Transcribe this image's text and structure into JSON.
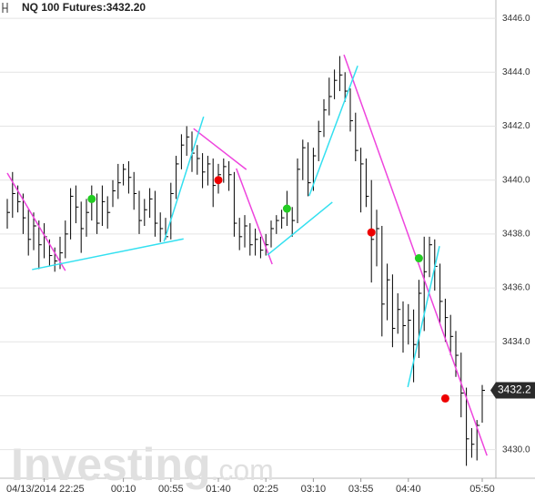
{
  "chart_data": {
    "type": "ohlc",
    "title": "NQ 100 Futures:3432.20",
    "watermark": {
      "brand": "Investing",
      ".com": ".com"
    },
    "categories": [
      null,
      null,
      null,
      null,
      null,
      null,
      null,
      "04/13/2014 22:25",
      null,
      null,
      null,
      null,
      null,
      null,
      null,
      null,
      null,
      null,
      null,
      null,
      null,
      null,
      "00:10",
      null,
      null,
      null,
      null,
      null,
      null,
      null,
      null,
      "00:55",
      null,
      null,
      null,
      null,
      null,
      null,
      null,
      null,
      "01:40",
      null,
      null,
      null,
      null,
      null,
      null,
      null,
      null,
      "02:25",
      null,
      null,
      null,
      null,
      null,
      null,
      null,
      null,
      "03:10",
      null,
      null,
      null,
      null,
      null,
      null,
      null,
      null,
      "03:55",
      null,
      null,
      null,
      null,
      null,
      null,
      null,
      null,
      "04:40",
      null,
      null,
      null,
      null,
      null,
      null,
      null,
      null,
      null,
      null,
      null,
      null,
      null,
      "05:50"
    ],
    "high": [
      3439.3,
      3440.3,
      3439.8,
      3439.5,
      3438.9,
      3438.8,
      3438.5,
      3438.4,
      3437.8,
      3437.5,
      3437.9,
      3438.5,
      3439.7,
      3439.8,
      3439.2,
      3439.3,
      3439.8,
      3439.5,
      3439.8,
      3439.4,
      3440.0,
      3440.6,
      3440.6,
      3440.7,
      3440.3,
      3439.6,
      3439.3,
      3439.7,
      3439.6,
      3438.8,
      3438.6,
      3439.9,
      3440.9,
      3441.7,
      3442.0,
      3441.8,
      3441.3,
      3441.0,
      3440.9,
      3440.8,
      3440.6,
      3440.8,
      3440.7,
      3440.3,
      3438.6,
      3438.7,
      3438.4,
      3438.2,
      3437.9,
      3438.0,
      3438.5,
      3438.7,
      3438.9,
      3439.6,
      3439.0,
      3440.8,
      3441.5,
      3441.4,
      3441.2,
      3442.2,
      3443.0,
      3443.8,
      3444.1,
      3444.6,
      3444.0,
      3443.4,
      3442.5,
      3441.2,
      3440.8,
      3440.0,
      3438.9,
      3438.3,
      3436.9,
      3436.5,
      3435.8,
      3435.5,
      3435.4,
      3435.2,
      3436.3,
      3437.9,
      3437.9,
      3437.8,
      3436.9,
      3435.6,
      3435.0,
      3434.4,
      3433.6,
      3432.3,
      3430.8,
      3431.1,
      3432.4
    ],
    "low": [
      3438.2,
      3438.6,
      3438.8,
      3438.0,
      3437.2,
      3437.4,
      3436.7,
      3437.1,
      3436.8,
      3436.6,
      3436.7,
      3437.1,
      3437.8,
      3438.4,
      3437.3,
      3437.9,
      3438.5,
      3438.0,
      3438.3,
      3438.2,
      3439.0,
      3439.3,
      3439.8,
      3439.5,
      3438.9,
      3438.0,
      3438.3,
      3438.6,
      3437.9,
      3437.7,
      3437.8,
      3437.8,
      3439.3,
      3440.4,
      3440.9,
      3440.3,
      3440.2,
      3439.7,
      3439.8,
      3439.0,
      3439.5,
      3439.9,
      3439.6,
      3437.9,
      3437.4,
      3437.5,
      3437.2,
      3437.2,
      3437.1,
      3437.2,
      3437.5,
      3438.0,
      3438.2,
      3438.3,
      3437.9,
      3438.4,
      3440.0,
      3439.4,
      3439.6,
      3440.7,
      3441.6,
      3442.4,
      3443.0,
      3443.3,
      3442.9,
      3441.8,
      3440.7,
      3438.8,
      3439.0,
      3436.2,
      3436.8,
      3434.2,
      3434.8,
      3433.8,
      3434.3,
      3433.6,
      3433.9,
      3432.5,
      3433.4,
      3434.4,
      3436.4,
      3435.9,
      3434.7,
      3434.0,
      3433.5,
      3432.7,
      3431.2,
      3429.4,
      3429.7,
      3429.6,
      3431.0
    ],
    "close": [
      3438.8,
      3439.5,
      3439.2,
      3438.6,
      3437.8,
      3438.3,
      3437.6,
      3437.9,
      3437.2,
      3437.0,
      3437.3,
      3438.0,
      3439.4,
      3439.0,
      3438.2,
      3438.8,
      3439.3,
      3438.4,
      3439.2,
      3438.8,
      3439.6,
      3439.9,
      3440.4,
      3440.1,
      3439.5,
      3438.5,
      3438.9,
      3439.3,
      3438.4,
      3438.2,
      3437.9,
      3439.5,
      3440.6,
      3441.3,
      3441.6,
      3441.0,
      3440.8,
      3440.3,
      3440.6,
      3439.8,
      3440.2,
      3440.5,
      3440.2,
      3438.4,
      3437.9,
      3438.3,
      3437.6,
      3437.8,
      3437.4,
      3437.6,
      3438.2,
      3438.5,
      3438.6,
      3438.9,
      3438.5,
      3440.4,
      3441.2,
      3439.9,
      3440.9,
      3441.8,
      3442.6,
      3443.1,
      3443.7,
      3443.9,
      3443.3,
      3442.2,
      3441.1,
      3440.6,
      3439.4,
      3437.8,
      3438.2,
      3435.4,
      3436.3,
      3434.5,
      3435.2,
      3434.6,
      3434.8,
      3433.9,
      3435.8,
      3436.6,
      3437.6,
      3436.8,
      3435.5,
      3434.9,
      3434.2,
      3433.5,
      3432.1,
      3430.4,
      3430.2,
      3430.9,
      3432.2
    ],
    "color": "#000000",
    "last_price": 3432.2,
    "signals": [
      {
        "color": "#22cc22",
        "index": [
          16,
          53,
          78
        ],
        "values": [
          3439.3,
          3438.94,
          3437.1
        ]
      },
      {
        "color": "#ee0000",
        "index": [
          40,
          69,
          83
        ],
        "values": [
          3440.0,
          3438.06,
          3431.9
        ]
      }
    ],
    "trend_lines": [
      {
        "color": "#ee44dd",
        "x": [
          0,
          11
        ],
        "y": [
          3440.26,
          3436.64
        ]
      },
      {
        "color": "#ee44dd",
        "x": [
          35.3,
          45.3
        ],
        "y": [
          3441.91,
          3440.39
        ]
      },
      {
        "color": "#ee44dd",
        "x": [
          43.4,
          50.2
        ],
        "y": [
          3440.43,
          3436.88
        ]
      },
      {
        "color": "#ee44dd",
        "x": [
          63.8,
          90.9
        ],
        "y": [
          3444.65,
          3429.78
        ]
      },
      {
        "color": "#33e0f0",
        "x": [
          4.7,
          33.4
        ],
        "y": [
          3436.68,
          3437.82
        ]
      },
      {
        "color": "#33e0f0",
        "x": [
          29.7,
          37.2
        ],
        "y": [
          3437.72,
          3442.35
        ]
      },
      {
        "color": "#33e0f0",
        "x": [
          49.3,
          61.6
        ],
        "y": [
          3437.22,
          3439.18
        ]
      },
      {
        "color": "#33e0f0",
        "x": [
          57.2,
          66.4
        ],
        "y": [
          3439.41,
          3444.24
        ]
      },
      {
        "color": "#33e0f0",
        "x": [
          75.9,
          81.9
        ],
        "y": [
          3432.32,
          3437.55
        ]
      }
    ],
    "ylim": [
      3428.94,
      3446.68
    ],
    "yticks": [
      {
        "value": 3430,
        "label": "3430.0"
      },
      {
        "value": 3432,
        "label": "3432.0"
      },
      {
        "value": 3434,
        "label": "3434.0"
      },
      {
        "value": 3436,
        "label": "3436.0"
      },
      {
        "value": 3438,
        "label": "3438.0"
      },
      {
        "value": 3440,
        "label": "3440.0"
      },
      {
        "value": 3442,
        "label": "3442.0"
      },
      {
        "value": 3444,
        "label": "3444.0"
      },
      {
        "value": 3446,
        "label": "3446.0"
      }
    ],
    "grid": true
  }
}
